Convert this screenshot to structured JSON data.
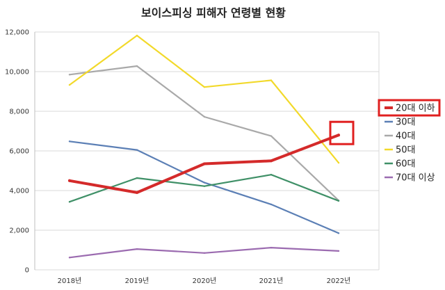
{
  "chart_data": {
    "type": "line",
    "title": "보이스피싱 피해자 연령별 현황",
    "xlabel": "",
    "ylabel": "",
    "categories": [
      "2018년",
      "2019년",
      "2020년",
      "2021년",
      "2022년"
    ],
    "ylim": [
      0,
      12000
    ],
    "yticks": [
      0,
      2000,
      4000,
      6000,
      8000,
      10000,
      12000
    ],
    "ytick_labels": [
      "0",
      "2,000",
      "4,000",
      "6,000",
      "8,000",
      "10,000",
      "12,000"
    ],
    "grid": true,
    "legend_position": "right",
    "series": [
      {
        "name": "20대 이하",
        "values": [
          4500,
          3900,
          5350,
          5500,
          6800
        ],
        "color": "#d42a2a",
        "highlight": true
      },
      {
        "name": "30대",
        "values": [
          6480,
          6050,
          4400,
          3300,
          1850
        ],
        "color": "#5b7fb5"
      },
      {
        "name": "40대",
        "values": [
          9850,
          10280,
          7720,
          6750,
          3500
        ],
        "color": "#a9a9a9"
      },
      {
        "name": "50대",
        "values": [
          9330,
          11820,
          9220,
          9560,
          5400
        ],
        "color": "#f2d92a"
      },
      {
        "name": "60대",
        "values": [
          3430,
          4630,
          4220,
          4800,
          3480
        ],
        "color": "#3f9067"
      },
      {
        "name": "70대 이상",
        "values": [
          620,
          1050,
          850,
          1120,
          950
        ],
        "color": "#9b6bb0"
      }
    ]
  }
}
